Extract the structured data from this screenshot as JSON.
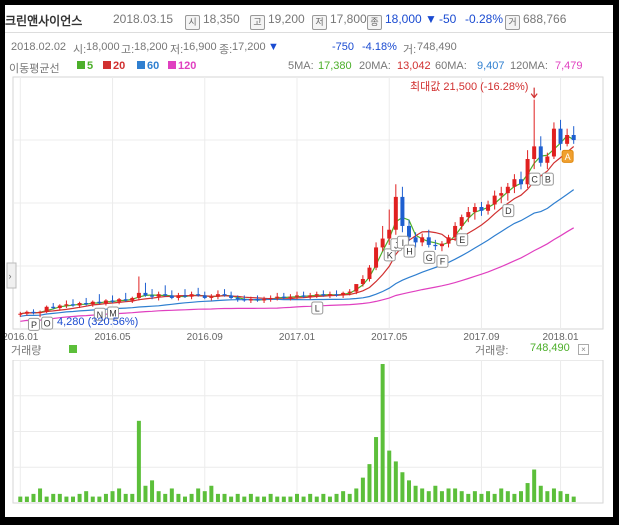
{
  "header": {
    "stock_name": "크린앤사이언스",
    "date": "2018.03.15",
    "open_icon": "시",
    "open": "18,350",
    "high_icon": "고",
    "high": "19,200",
    "low_icon": "저",
    "low": "17,800",
    "close_icon": "종",
    "close": "18,000",
    "change_arrow": "▼",
    "change": "-50",
    "change_pct": "-0.28%",
    "volume_icon": "거",
    "volume": "688,766"
  },
  "info_bar": {
    "date": "2018.02.02",
    "open_label": "시:",
    "open": "18,000",
    "high_label": "고:",
    "high": "18,200",
    "low_label": "저:",
    "low": "16,900",
    "close_label": "종:",
    "close": "17,200",
    "arrow": "▼",
    "change": "-750",
    "change_pct": "-4.18%",
    "volume_label": "거:",
    "volume": "748,490"
  },
  "legend": {
    "title": "이동평균선",
    "ma5": "5",
    "ma20": "20",
    "ma60": "60",
    "ma120": "120",
    "ma5_color": "#4caf2a",
    "ma20_color": "#d13030",
    "ma60_color": "#2f7fd0",
    "ma120_color": "#e040c0",
    "ma5_label": "5MA:",
    "ma5_value": "17,380",
    "ma20_label": "20MA:",
    "ma20_value": "13,042",
    "ma60_label": "60MA:",
    "ma60_value": "9,407",
    "ma120_label": "120MA:",
    "ma120_value": "7,479"
  },
  "volume_panel": {
    "title": "거래량",
    "value_label": "거래량:",
    "value": "748,490"
  },
  "chart_data": {
    "type": "candlestick",
    "x_ticks": [
      "2016.01",
      "2016.05",
      "2016.09",
      "2017.01",
      "2017.05",
      "2017.09",
      "2018.01"
    ],
    "max_annotation": "최대값 21,500 (-16.28%)",
    "min_annotation": "4,280 (320.56%)",
    "max_value": 21500,
    "min_value": 4280,
    "markers": [
      "P",
      "O",
      "N",
      "M",
      "L",
      "K",
      "J",
      "I",
      "H",
      "G",
      "F",
      "E",
      "D",
      "C",
      "B",
      "A"
    ],
    "ohlc": [
      [
        4500,
        4700,
        4300,
        4550
      ],
      [
        4550,
        4800,
        4400,
        4700
      ],
      [
        4700,
        4900,
        4500,
        4600
      ],
      [
        4600,
        4800,
        4280,
        4700
      ],
      [
        4700,
        5200,
        4600,
        5100
      ],
      [
        5100,
        5400,
        4900,
        5000
      ],
      [
        5000,
        5300,
        4800,
        5200
      ],
      [
        5200,
        5600,
        5000,
        5300
      ],
      [
        5300,
        5700,
        5100,
        5200
      ],
      [
        5200,
        5500,
        5000,
        5400
      ],
      [
        5400,
        5800,
        5200,
        5300
      ],
      [
        5300,
        5600,
        5100,
        5500
      ],
      [
        5500,
        6100,
        5300,
        5400
      ],
      [
        5400,
        5700,
        5200,
        5600
      ],
      [
        5600,
        6000,
        5400,
        5500
      ],
      [
        5500,
        5800,
        5300,
        5700
      ],
      [
        5700,
        6200,
        5500,
        5600
      ],
      [
        5600,
        5900,
        5400,
        5800
      ],
      [
        5800,
        7500,
        5600,
        6200
      ],
      [
        6200,
        7000,
        5900,
        6000
      ],
      [
        6000,
        6500,
        5700,
        5900
      ],
      [
        5900,
        6300,
        5600,
        6100
      ],
      [
        6100,
        6800,
        5900,
        6000
      ],
      [
        6000,
        6400,
        5700,
        5800
      ],
      [
        5800,
        6200,
        5600,
        6000
      ],
      [
        6000,
        6500,
        5800,
        5900
      ],
      [
        5900,
        6300,
        5700,
        6100
      ],
      [
        6100,
        6600,
        5900,
        6000
      ],
      [
        6000,
        6300,
        5700,
        5800
      ],
      [
        5800,
        6100,
        5600,
        5900
      ],
      [
        5900,
        6400,
        5700,
        6100
      ],
      [
        6100,
        6500,
        5900,
        6000
      ],
      [
        6000,
        6300,
        5700,
        5800
      ],
      [
        5800,
        6000,
        5500,
        5700
      ],
      [
        5700,
        6000,
        5500,
        5600
      ],
      [
        5600,
        5900,
        5400,
        5700
      ],
      [
        5700,
        6000,
        5500,
        5600
      ],
      [
        5600,
        5900,
        5400,
        5700
      ],
      [
        5700,
        6000,
        5500,
        5800
      ],
      [
        5800,
        6200,
        5600,
        5900
      ],
      [
        5900,
        6200,
        5700,
        5800
      ],
      [
        5800,
        6100,
        5600,
        5900
      ],
      [
        5900,
        6300,
        5700,
        6000
      ],
      [
        6000,
        6300,
        5800,
        5900
      ],
      [
        5900,
        6200,
        5700,
        6000
      ],
      [
        6000,
        6300,
        5800,
        6100
      ],
      [
        6100,
        6400,
        5900,
        6000
      ],
      [
        6000,
        6300,
        5800,
        6100
      ],
      [
        6100,
        6400,
        5900,
        6000
      ],
      [
        6000,
        6300,
        5800,
        6200
      ],
      [
        6200,
        6500,
        6000,
        6300
      ],
      [
        6300,
        6800,
        6100,
        6900
      ],
      [
        6900,
        7600,
        6700,
        7300
      ],
      [
        7300,
        8400,
        7100,
        8200
      ],
      [
        8200,
        10200,
        8000,
        9800
      ],
      [
        9800,
        11500,
        9500,
        10500
      ],
      [
        10500,
        12800,
        10000,
        11200
      ],
      [
        11200,
        14800,
        10800,
        13800
      ],
      [
        13800,
        14600,
        11000,
        11500
      ],
      [
        11500,
        12000,
        10300,
        10600
      ],
      [
        10600,
        11000,
        9800,
        10200
      ],
      [
        10200,
        10900,
        9900,
        10600
      ],
      [
        10600,
        11200,
        9800,
        10000
      ],
      [
        10000,
        10400,
        9600,
        9900
      ],
      [
        9900,
        10300,
        9500,
        10100
      ],
      [
        10100,
        10800,
        9800,
        10600
      ],
      [
        10600,
        11800,
        10300,
        11500
      ],
      [
        11500,
        12400,
        11200,
        12200
      ],
      [
        12200,
        13000,
        11800,
        12600
      ],
      [
        12600,
        13300,
        12000,
        13000
      ],
      [
        13000,
        13400,
        12300,
        12700
      ],
      [
        12700,
        13500,
        12400,
        13200
      ],
      [
        13200,
        14300,
        12800,
        13900
      ],
      [
        13900,
        14600,
        13300,
        14100
      ],
      [
        14100,
        14900,
        13500,
        14600
      ],
      [
        14600,
        15600,
        14100,
        15200
      ],
      [
        15200,
        15800,
        14400,
        14800
      ],
      [
        14800,
        17500,
        14500,
        16800
      ],
      [
        16800,
        21500,
        16000,
        17800
      ],
      [
        17800,
        18600,
        16200,
        16500
      ],
      [
        16500,
        17300,
        16000,
        17000
      ],
      [
        17000,
        19700,
        16800,
        19200
      ],
      [
        19200,
        19900,
        17500,
        18000
      ],
      [
        18000,
        19200,
        17800,
        18700
      ],
      [
        18700,
        19400,
        18000,
        18300
      ]
    ],
    "volume": [
      2,
      2,
      3,
      5,
      2,
      3,
      3,
      2,
      2,
      3,
      4,
      2,
      2,
      3,
      4,
      5,
      3,
      3,
      30,
      6,
      8,
      4,
      3,
      5,
      3,
      2,
      3,
      5,
      4,
      6,
      3,
      3,
      2,
      3,
      2,
      3,
      2,
      2,
      3,
      2,
      2,
      2,
      3,
      2,
      3,
      2,
      3,
      2,
      3,
      4,
      3,
      5,
      9,
      14,
      24,
      51,
      19,
      15,
      11,
      8,
      6,
      5,
      4,
      6,
      4,
      5,
      5,
      4,
      3,
      4,
      3,
      4,
      3,
      5,
      4,
      3,
      4,
      7,
      12,
      6,
      4,
      5,
      4,
      3,
      2
    ],
    "ma5_color": "#4caf2a",
    "ma20_color": "#d13030",
    "ma60_color": "#2f7fd0",
    "ma120_color": "#e040c0"
  }
}
